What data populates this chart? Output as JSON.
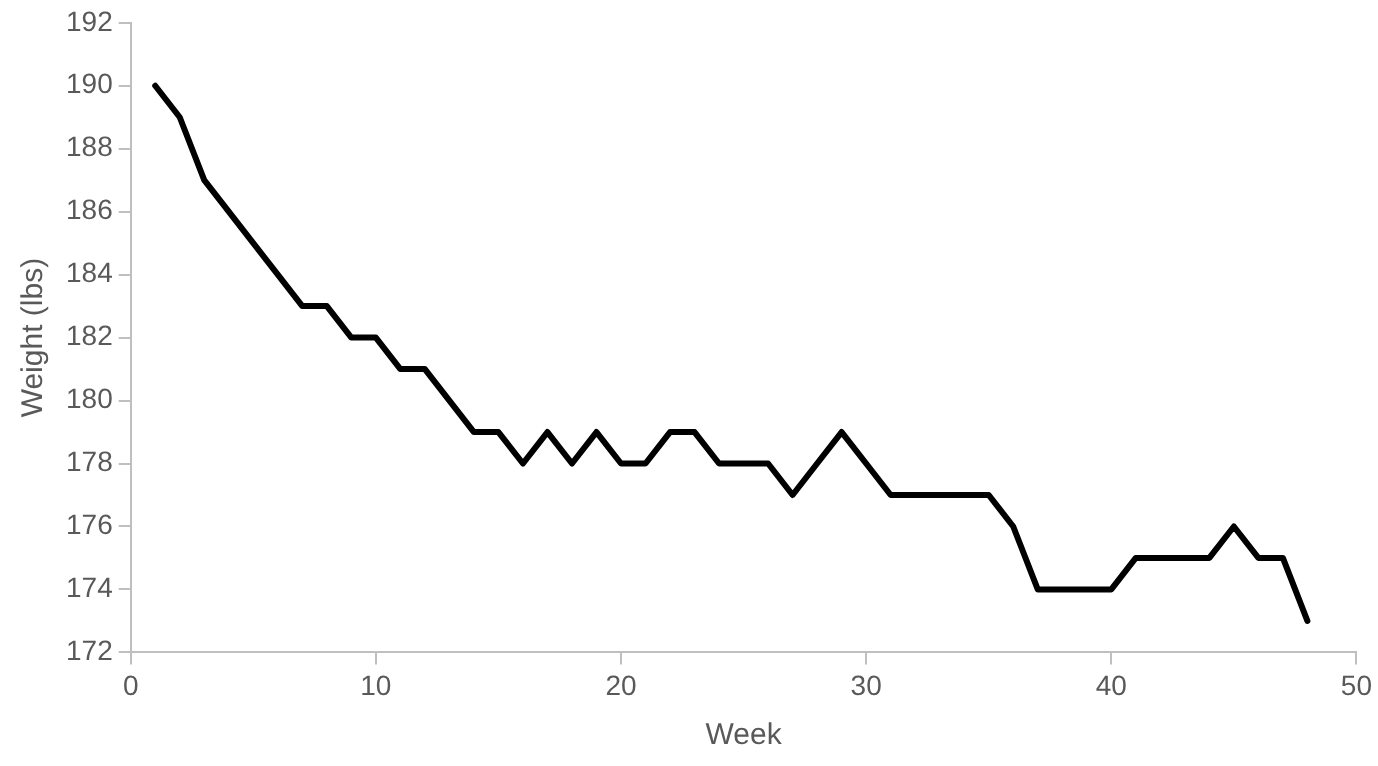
{
  "chart_data": {
    "type": "line",
    "xlabel": "Week",
    "ylabel": "Weight (lbs)",
    "x": [
      1,
      2,
      3,
      4,
      5,
      6,
      7,
      8,
      9,
      10,
      11,
      12,
      13,
      14,
      15,
      16,
      17,
      18,
      19,
      20,
      21,
      22,
      23,
      24,
      25,
      26,
      27,
      28,
      29,
      30,
      31,
      32,
      33,
      34,
      35,
      36,
      37,
      38,
      39,
      40,
      41,
      42,
      43,
      44,
      45,
      46,
      47,
      48
    ],
    "series": [
      {
        "color": "#000000",
        "values": [
          190,
          189,
          187,
          186,
          185,
          184,
          183,
          183,
          182,
          182,
          181,
          181,
          180,
          179,
          179,
          178,
          179,
          178,
          179,
          178,
          178,
          179,
          179,
          178,
          178,
          178,
          177,
          178,
          179,
          178,
          177,
          177,
          177,
          177,
          177,
          176,
          174,
          174,
          174,
          174,
          175,
          175,
          175,
          175,
          176,
          175,
          175,
          173
        ]
      }
    ],
    "xlim": [
      0,
      50
    ],
    "xticks": [
      0,
      10,
      20,
      30,
      40,
      50
    ],
    "ylim": [
      172,
      192
    ],
    "yticks": [
      172,
      174,
      176,
      178,
      180,
      182,
      184,
      186,
      188,
      190,
      192
    ],
    "grid": false,
    "legend": false,
    "marker": "none",
    "line_style": "solid"
  }
}
